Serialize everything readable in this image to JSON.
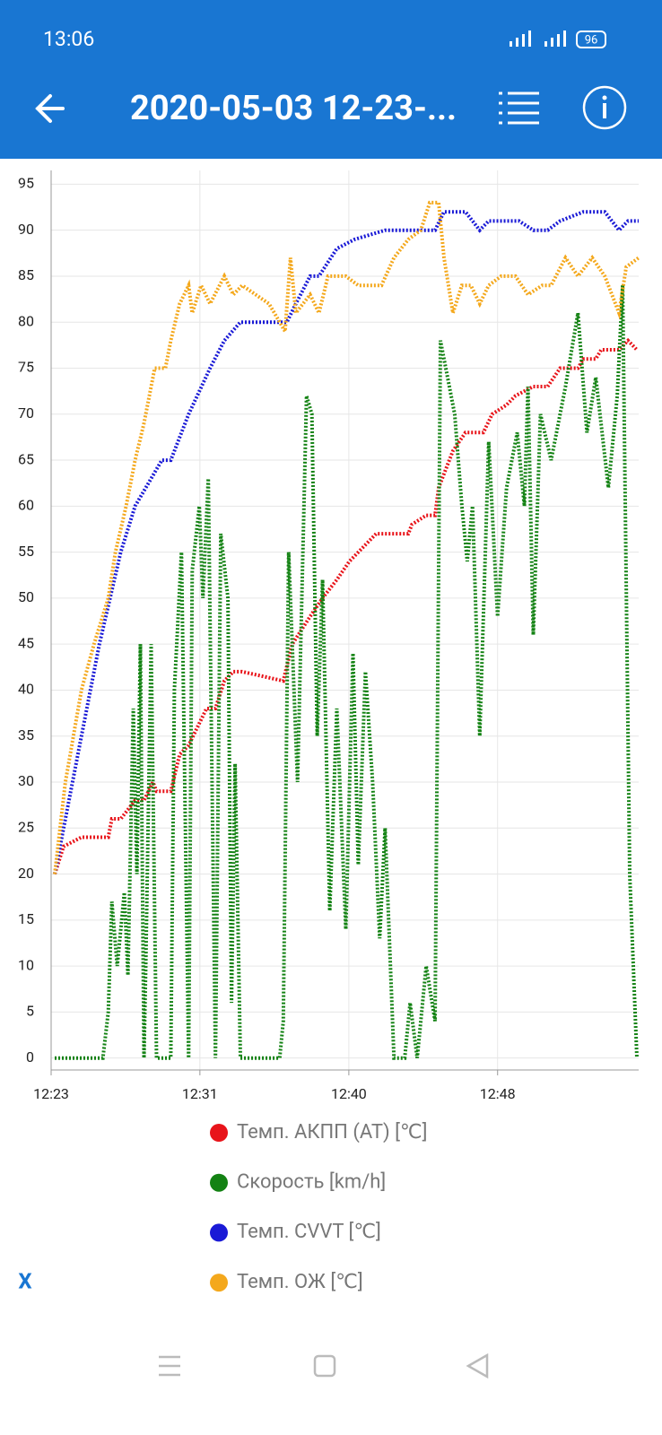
{
  "status_bar": {
    "time": "13:06",
    "battery": "96"
  },
  "header": {
    "title": "2020-05-03 12-23-..."
  },
  "close_label": "X",
  "chart_data": {
    "type": "line",
    "xlim": [
      0,
      32.9
    ],
    "xticks": [
      {
        "value": 0,
        "label": "12:23"
      },
      {
        "value": 8.33,
        "label": "12:31"
      },
      {
        "value": 16.67,
        "label": "12:40"
      },
      {
        "value": 25,
        "label": "12:48"
      }
    ],
    "ylim": [
      -1.3,
      96.5
    ],
    "yticks": [
      0,
      5,
      10,
      15,
      20,
      25,
      30,
      35,
      40,
      45,
      50,
      55,
      60,
      65,
      70,
      75,
      80,
      85,
      90,
      95
    ],
    "grid": true,
    "series": [
      {
        "name": "Темп. АКПП (AT) [℃]",
        "color": "#e8141a",
        "x": [
          0.2,
          0.7,
          1.7,
          3.2,
          3.4,
          3.9,
          4.7,
          5.2,
          5.7,
          5.9,
          6.7,
          7.2,
          7.7,
          8.7,
          9.2,
          9.7,
          10.2,
          10.7,
          13,
          13.5,
          14.5,
          15.2,
          16,
          16.7,
          17.7,
          18.2,
          20,
          20.2,
          21,
          21.5,
          21.7,
          22.5,
          23.2,
          24.2,
          24.7,
          25.5,
          26,
          27,
          27.8,
          28.5,
          29.5,
          29.8,
          30.5,
          30.8,
          31.8,
          32.3,
          32.8
        ],
        "values": [
          20,
          23,
          24,
          24,
          26,
          26,
          28,
          28,
          30,
          29,
          29,
          33,
          34,
          38,
          38,
          41,
          42,
          42,
          41,
          45,
          48,
          50,
          52,
          54,
          56,
          57,
          57,
          58,
          59,
          59,
          62,
          66,
          68,
          68,
          70,
          71,
          72,
          73,
          73,
          75,
          75,
          76,
          76,
          77,
          77,
          78,
          77
        ]
      },
      {
        "name": "Скорость [km/h]",
        "color": "#138213",
        "x": [
          0.2,
          2.9,
          3.2,
          3.4,
          3.7,
          4.1,
          4.3,
          4.6,
          4.8,
          5.0,
          5.2,
          5.3,
          5.6,
          5.9,
          6.7,
          6.9,
          7.3,
          7.7,
          7.9,
          8.3,
          8.5,
          8.8,
          9.2,
          9.5,
          9.9,
          10.1,
          10.3,
          10.6,
          12.8,
          13,
          13.3,
          13.8,
          14.3,
          14.6,
          14.9,
          15.2,
          15.6,
          16,
          16.5,
          16.9,
          17.2,
          17.6,
          18,
          18.4,
          18.7,
          19.2,
          19.8,
          20.1,
          20.5,
          21,
          21.5,
          21.8,
          22.6,
          23,
          23.3,
          23.6,
          24,
          24.5,
          25,
          25.5,
          26.1,
          26.5,
          26.7,
          27,
          27.4,
          28,
          28.8,
          29.5,
          30,
          30.5,
          31.2,
          31.7,
          32,
          32.4,
          32.8
        ],
        "values": [
          0,
          0,
          5,
          17,
          10,
          18,
          9,
          38,
          20,
          45,
          0,
          10,
          45,
          0,
          0,
          40,
          55,
          0,
          53,
          60,
          50,
          63,
          0,
          57,
          50,
          6,
          32,
          0,
          0,
          4,
          55,
          30,
          72,
          70,
          35,
          52,
          16,
          38,
          14,
          44,
          21,
          42,
          30,
          13,
          25,
          0,
          0,
          6,
          0,
          10,
          4,
          78,
          70,
          60,
          54,
          60,
          35,
          67,
          48,
          62,
          68,
          60,
          73,
          46,
          70,
          65,
          73,
          81,
          68,
          74,
          62,
          72,
          84,
          20,
          0
        ]
      },
      {
        "name": "Темп. CVVT [℃]",
        "color": "#1a1ad6",
        "x": [
          0.2,
          0.7,
          1.7,
          2.7,
          3.9,
          4.7,
          6.2,
          6.7,
          7.7,
          8.9,
          9.7,
          10.6,
          13.2,
          13.7,
          14.5,
          15,
          16,
          17,
          18.7,
          21.5,
          22,
          23.2,
          24,
          24.5,
          26.2,
          27,
          27.8,
          28.5,
          29.8,
          31,
          31.8,
          32.3,
          32.9
        ],
        "values": [
          20,
          25,
          35,
          45,
          55,
          60,
          65,
          65,
          70,
          75,
          78,
          80,
          80,
          82,
          85,
          85,
          88,
          89,
          90,
          90,
          92,
          92,
          90,
          91,
          91,
          90,
          90,
          91,
          92,
          92,
          90,
          91,
          91
        ]
      },
      {
        "name": "Темп. ОЖ [℃]",
        "color": "#f4a81c",
        "x": [
          0.2,
          0.8,
          1.7,
          2.4,
          3.2,
          3.6,
          4.2,
          4.7,
          5.2,
          5.8,
          6.4,
          6.7,
          7.2,
          7.7,
          7.9,
          8.4,
          8.9,
          9.7,
          10.2,
          10.7,
          12.2,
          13.1,
          13.4,
          13.7,
          14.5,
          15,
          15.5,
          16.5,
          17.2,
          18.5,
          19.2,
          20,
          20.7,
          21.2,
          21.7,
          22,
          22.5,
          23,
          23.5,
          24,
          24.5,
          25.2,
          26,
          26.7,
          27.5,
          28,
          28.8,
          29.5,
          30.3,
          31,
          31.8,
          32.2,
          32.9
        ],
        "values": [
          20,
          30,
          40,
          45,
          50,
          55,
          60,
          65,
          69,
          75,
          75,
          78,
          82,
          84,
          81,
          84,
          82,
          85,
          83,
          84,
          82,
          79,
          87,
          81,
          83,
          81,
          85,
          85,
          84,
          84,
          87,
          89,
          90,
          93,
          93,
          87,
          81,
          84,
          84,
          82,
          84,
          85,
          85,
          83,
          84,
          84,
          87,
          85,
          87,
          85,
          81,
          86,
          87
        ]
      }
    ]
  }
}
